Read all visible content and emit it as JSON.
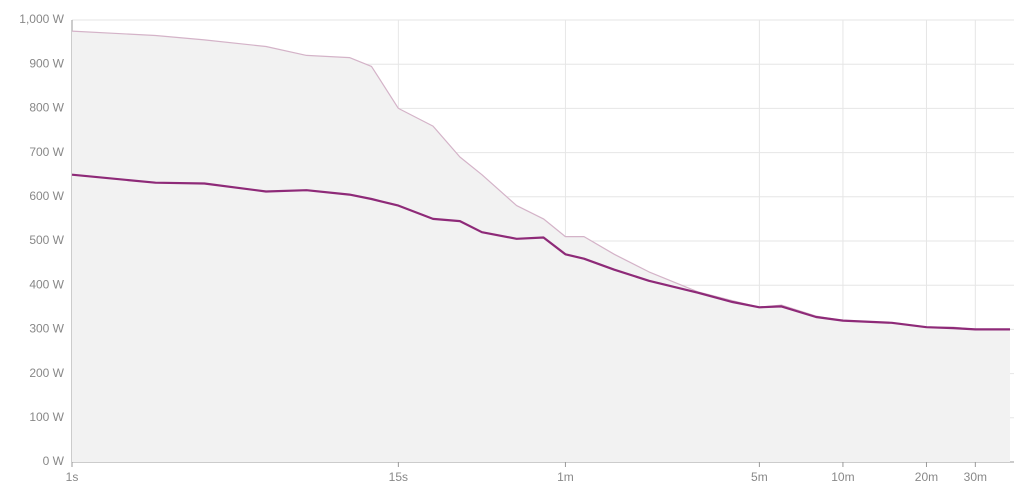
{
  "chart_data": {
    "type": "line",
    "log_x": true,
    "grid": true,
    "area_fill": "#f2f2f2",
    "x": [
      1,
      2,
      3,
      5,
      7,
      10,
      12,
      15,
      20,
      25,
      30,
      40,
      50,
      60,
      70,
      90,
      120,
      180,
      240,
      300,
      360,
      480,
      600,
      900,
      1200,
      1500,
      1800,
      2400
    ],
    "series": [
      {
        "color": "#d4b3c8",
        "values": [
          975,
          965,
          955,
          940,
          920,
          915,
          895,
          800,
          760,
          690,
          650,
          580,
          550,
          510,
          510,
          470,
          430,
          385,
          365,
          350,
          355,
          330,
          320,
          315,
          305,
          305,
          300,
          300
        ]
      },
      {
        "color": "#8e2a78",
        "values": [
          650,
          632,
          630,
          612,
          615,
          605,
          595,
          580,
          550,
          545,
          520,
          505,
          508,
          470,
          460,
          435,
          410,
          383,
          362,
          350,
          352,
          328,
          320,
          315,
          305,
          303,
          300,
          300
        ]
      }
    ],
    "xlim": [
      1,
      2400
    ],
    "ylim": [
      0,
      1000
    ],
    "xticks": [
      {
        "value": 1,
        "label": "1s"
      },
      {
        "value": 15,
        "label": "15s"
      },
      {
        "value": 60,
        "label": "1m"
      },
      {
        "value": 300,
        "label": "5m"
      },
      {
        "value": 600,
        "label": "10m"
      },
      {
        "value": 1200,
        "label": "20m"
      },
      {
        "value": 1800,
        "label": "30m"
      }
    ],
    "yticks": [
      {
        "value": 0,
        "label": "0 W"
      },
      {
        "value": 100,
        "label": "100 W"
      },
      {
        "value": 200,
        "label": "200 W"
      },
      {
        "value": 300,
        "label": "300 W"
      },
      {
        "value": 400,
        "label": "400 W"
      },
      {
        "value": 500,
        "label": "500 W"
      },
      {
        "value": 600,
        "label": "600 W"
      },
      {
        "value": 700,
        "label": "700 W"
      },
      {
        "value": 800,
        "label": "800 W"
      },
      {
        "value": 900,
        "label": "900 W"
      },
      {
        "value": 1000,
        "label": "1,000 W"
      }
    ]
  }
}
